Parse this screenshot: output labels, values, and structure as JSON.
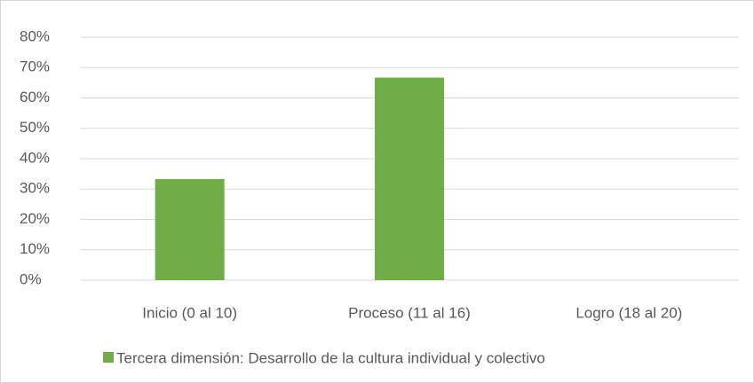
{
  "chart_data": {
    "type": "bar",
    "categories": [
      "Inicio (0 al 10)",
      "Proceso (11 al 16)",
      "Logro (18 al 20)"
    ],
    "series": [
      {
        "name": "Tercera dimensión: Desarrollo de la cultura individual y colectivo",
        "color": "#70ad47",
        "values": [
          33.3,
          66.7,
          0
        ]
      }
    ],
    "ylim": [
      0,
      80
    ],
    "yticks": [
      {
        "value": 0,
        "label": "0%"
      },
      {
        "value": 10,
        "label": "10%"
      },
      {
        "value": 20,
        "label": "20%"
      },
      {
        "value": 30,
        "label": "30%"
      },
      {
        "value": 40,
        "label": "40%"
      },
      {
        "value": 50,
        "label": "50%"
      },
      {
        "value": 60,
        "label": "60%"
      },
      {
        "value": 70,
        "label": "70%"
      },
      {
        "value": 80,
        "label": "80%"
      }
    ],
    "grid": true,
    "legend": "bottom"
  }
}
